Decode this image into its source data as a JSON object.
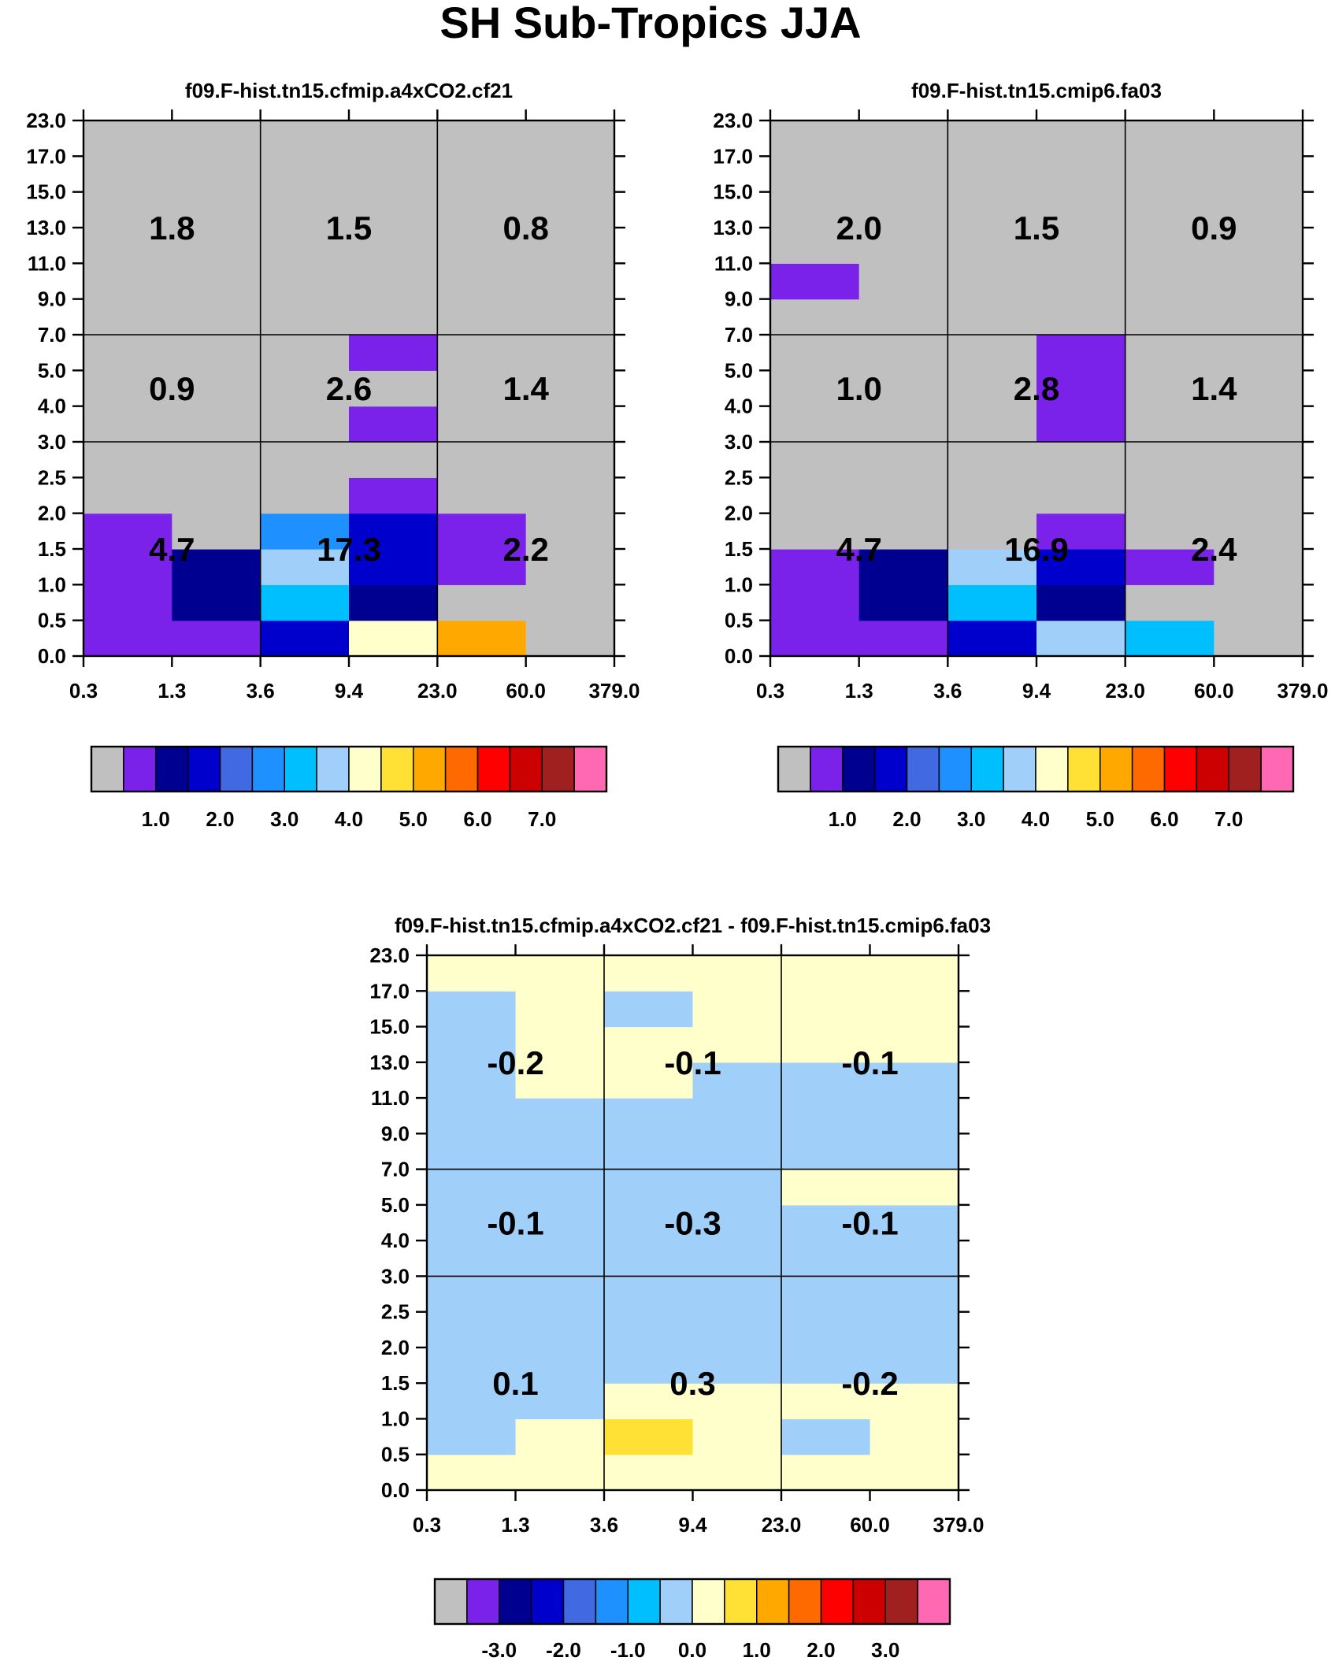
{
  "title": "SH Sub-Tropics JJA",
  "chart_data": [
    {
      "type": "heatmap",
      "title": "f09.F-hist.tn15.cfmip.a4xCO2.cf21",
      "x_tick_labels": [
        "0.3",
        "1.3",
        "3.6",
        "9.4",
        "23.0",
        "60.0",
        "379.0"
      ],
      "y_tick_labels": [
        "0.0",
        "0.5",
        "1.0",
        "1.5",
        "2.0",
        "2.5",
        "3.0",
        "4.0",
        "5.0",
        "7.0",
        "9.0",
        "11.0",
        "13.0",
        "15.0",
        "17.0",
        "23.0"
      ],
      "cells": [
        [
          1,
          1,
          3,
          8,
          10,
          0
        ],
        [
          1,
          2,
          6,
          2,
          0,
          0
        ],
        [
          1,
          2,
          7,
          3,
          1,
          0
        ],
        [
          1,
          0,
          5,
          3,
          1,
          0
        ],
        [
          0,
          0,
          0,
          1,
          0,
          0
        ],
        [
          0,
          0,
          0,
          0,
          0,
          0
        ],
        [
          0,
          0,
          0,
          1,
          0,
          0
        ],
        [
          0,
          0,
          0,
          0,
          0,
          0
        ],
        [
          0,
          0,
          0,
          1,
          0,
          0
        ],
        [
          0,
          0,
          0,
          0,
          0,
          0
        ],
        [
          0,
          0,
          0,
          0,
          0,
          0
        ],
        [
          0,
          0,
          0,
          0,
          0,
          0
        ],
        [
          0,
          0,
          0,
          0,
          0,
          0
        ],
        [
          0,
          0,
          0,
          0,
          0,
          0
        ],
        [
          0,
          0,
          0,
          0,
          0,
          0
        ]
      ],
      "group_values": [
        [
          "1.8",
          "1.5",
          "0.8"
        ],
        [
          "0.9",
          "2.6",
          "1.4"
        ],
        [
          "4.7",
          "17.3",
          "2.2"
        ]
      ],
      "colorbar_labels": [
        "1.0",
        "2.0",
        "3.0",
        "4.0",
        "5.0",
        "6.0",
        "7.0"
      ]
    },
    {
      "type": "heatmap",
      "title": "f09.F-hist.tn15.cmip6.fa03",
      "x_tick_labels": [
        "0.3",
        "1.3",
        "3.6",
        "9.4",
        "23.0",
        "60.0",
        "379.0"
      ],
      "y_tick_labels": [
        "0.0",
        "0.5",
        "1.0",
        "1.5",
        "2.0",
        "2.5",
        "3.0",
        "4.0",
        "5.0",
        "7.0",
        "9.0",
        "11.0",
        "13.0",
        "15.0",
        "17.0",
        "23.0"
      ],
      "cells": [
        [
          1,
          1,
          3,
          7,
          6,
          0
        ],
        [
          1,
          2,
          6,
          2,
          0,
          0
        ],
        [
          1,
          2,
          7,
          3,
          1,
          0
        ],
        [
          0,
          0,
          0,
          1,
          0,
          0
        ],
        [
          0,
          0,
          0,
          0,
          0,
          0
        ],
        [
          0,
          0,
          0,
          0,
          0,
          0
        ],
        [
          0,
          0,
          0,
          1,
          0,
          0
        ],
        [
          0,
          0,
          0,
          1,
          0,
          0
        ],
        [
          0,
          0,
          0,
          1,
          0,
          0
        ],
        [
          0,
          0,
          0,
          0,
          0,
          0
        ],
        [
          1,
          0,
          0,
          0,
          0,
          0
        ],
        [
          0,
          0,
          0,
          0,
          0,
          0
        ],
        [
          0,
          0,
          0,
          0,
          0,
          0
        ],
        [
          0,
          0,
          0,
          0,
          0,
          0
        ],
        [
          0,
          0,
          0,
          0,
          0,
          0
        ]
      ],
      "group_values": [
        [
          "2.0",
          "1.5",
          "0.9"
        ],
        [
          "1.0",
          "2.8",
          "1.4"
        ],
        [
          "4.7",
          "16.9",
          "2.4"
        ]
      ],
      "colorbar_labels": [
        "1.0",
        "2.0",
        "3.0",
        "4.0",
        "5.0",
        "6.0",
        "7.0"
      ]
    },
    {
      "type": "heatmap",
      "title": "f09.F-hist.tn15.cfmip.a4xCO2.cf21 - f09.F-hist.tn15.cmip6.fa03",
      "x_tick_labels": [
        "0.3",
        "1.3",
        "3.6",
        "9.4",
        "23.0",
        "60.0",
        "379.0"
      ],
      "y_tick_labels": [
        "0.0",
        "0.5",
        "1.0",
        "1.5",
        "2.0",
        "2.5",
        "3.0",
        "4.0",
        "5.0",
        "7.0",
        "9.0",
        "11.0",
        "13.0",
        "15.0",
        "17.0",
        "23.0"
      ],
      "cells": [
        [
          8,
          8,
          8,
          8,
          8,
          8
        ],
        [
          7,
          8,
          9,
          8,
          7,
          8
        ],
        [
          7,
          7,
          8,
          8,
          8,
          8
        ],
        [
          7,
          7,
          7,
          7,
          7,
          7
        ],
        [
          7,
          7,
          7,
          7,
          7,
          7
        ],
        [
          7,
          7,
          7,
          7,
          7,
          7
        ],
        [
          7,
          7,
          7,
          7,
          7,
          7
        ],
        [
          7,
          7,
          7,
          7,
          7,
          7
        ],
        [
          7,
          7,
          7,
          7,
          8,
          8
        ],
        [
          7,
          7,
          7,
          7,
          7,
          7
        ],
        [
          7,
          7,
          7,
          7,
          7,
          7
        ],
        [
          7,
          8,
          8,
          7,
          7,
          7
        ],
        [
          7,
          8,
          8,
          8,
          8,
          8
        ],
        [
          7,
          8,
          7,
          8,
          8,
          8
        ],
        [
          8,
          8,
          8,
          8,
          8,
          8
        ]
      ],
      "group_values": [
        [
          "-0.2",
          "-0.1",
          "-0.1"
        ],
        [
          "-0.1",
          "-0.3",
          "-0.1"
        ],
        [
          "0.1",
          "0.3",
          "-0.2"
        ]
      ],
      "colorbar_labels": [
        "-3.0",
        "-2.0",
        "-1.0",
        "0.0",
        "1.0",
        "2.0",
        "3.0"
      ]
    }
  ],
  "colors": {
    "palette": [
      "#c0c0c0",
      "#7a22ea",
      "#000090",
      "#0000cc",
      "#4169e1",
      "#1e90ff",
      "#00bfff",
      "#a0d0fa",
      "#ffffcc",
      "#ffe135",
      "#ffa800",
      "#ff6a00",
      "#ff0000",
      "#cc0000",
      "#a02020",
      "#ff69b4"
    ]
  }
}
